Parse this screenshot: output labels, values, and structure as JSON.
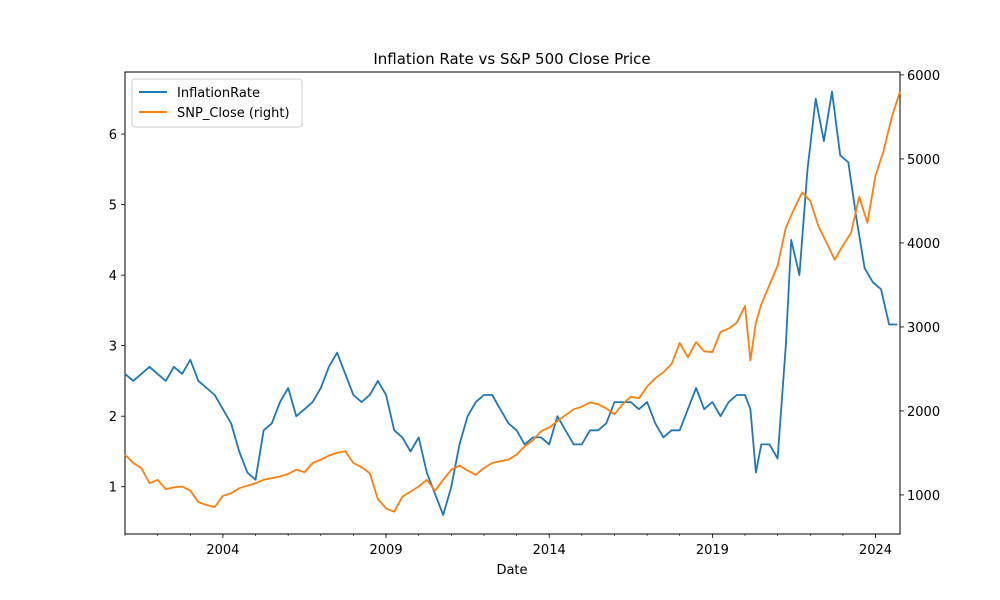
{
  "chart_data": {
    "type": "line",
    "title": "Inflation Rate vs S&P 500 Close Price",
    "xlabel": "Date",
    "ylabel_left": "",
    "ylabel_right": "",
    "xlim": [
      "2001-01-01",
      "2024-10-01"
    ],
    "ylim_left": [
      0.33,
      6.88
    ],
    "ylim_right": [
      535,
      6035
    ],
    "x_ticks": [
      {
        "label": "2004",
        "date": "2004-01-01"
      },
      {
        "label": "2009",
        "date": "2009-01-01"
      },
      {
        "label": "2014",
        "date": "2014-01-01"
      },
      {
        "label": "2019",
        "date": "2019-01-01"
      },
      {
        "label": "2024",
        "date": "2024-01-01"
      }
    ],
    "y_ticks_left": [
      {
        "label": "1",
        "value": 1
      },
      {
        "label": "2",
        "value": 2
      },
      {
        "label": "3",
        "value": 3
      },
      {
        "label": "4",
        "value": 4
      },
      {
        "label": "5",
        "value": 5
      },
      {
        "label": "6",
        "value": 6
      }
    ],
    "y_ticks_right": [
      {
        "label": "1000",
        "value": 1000
      },
      {
        "label": "2000",
        "value": 2000
      },
      {
        "label": "3000",
        "value": 3000
      },
      {
        "label": "4000",
        "value": 4000
      },
      {
        "label": "5000",
        "value": 5000
      },
      {
        "label": "6000",
        "value": 6000
      }
    ],
    "grid": false,
    "legend_position": "top-left",
    "series": [
      {
        "name": "InflationRate",
        "axis": "left",
        "color": "#1f77b4",
        "points": [
          [
            "2001-01-01",
            2.6
          ],
          [
            "2001-04-01",
            2.5
          ],
          [
            "2001-07-01",
            2.6
          ],
          [
            "2001-10-01",
            2.7
          ],
          [
            "2002-01-01",
            2.6
          ],
          [
            "2002-04-01",
            2.5
          ],
          [
            "2002-07-01",
            2.7
          ],
          [
            "2002-10-01",
            2.6
          ],
          [
            "2003-01-01",
            2.8
          ],
          [
            "2003-04-01",
            2.5
          ],
          [
            "2003-07-01",
            2.4
          ],
          [
            "2003-10-01",
            2.3
          ],
          [
            "2004-01-01",
            2.1
          ],
          [
            "2004-04-01",
            1.9
          ],
          [
            "2004-07-01",
            1.5
          ],
          [
            "2004-10-01",
            1.2
          ],
          [
            "2005-01-01",
            1.1
          ],
          [
            "2005-04-01",
            1.8
          ],
          [
            "2005-07-01",
            1.9
          ],
          [
            "2005-10-01",
            2.2
          ],
          [
            "2006-01-01",
            2.4
          ],
          [
            "2006-04-01",
            2.0
          ],
          [
            "2006-07-01",
            2.1
          ],
          [
            "2006-10-01",
            2.2
          ],
          [
            "2007-01-01",
            2.4
          ],
          [
            "2007-04-01",
            2.7
          ],
          [
            "2007-07-01",
            2.9
          ],
          [
            "2007-10-01",
            2.6
          ],
          [
            "2008-01-01",
            2.3
          ],
          [
            "2008-04-01",
            2.2
          ],
          [
            "2008-07-01",
            2.3
          ],
          [
            "2008-10-01",
            2.5
          ],
          [
            "2009-01-01",
            2.3
          ],
          [
            "2009-04-01",
            1.8
          ],
          [
            "2009-07-01",
            1.7
          ],
          [
            "2009-10-01",
            1.5
          ],
          [
            "2010-01-01",
            1.7
          ],
          [
            "2010-04-01",
            1.2
          ],
          [
            "2010-07-01",
            0.9
          ],
          [
            "2010-10-01",
            0.6
          ],
          [
            "2011-01-01",
            1.0
          ],
          [
            "2011-04-01",
            1.6
          ],
          [
            "2011-07-01",
            2.0
          ],
          [
            "2011-10-01",
            2.2
          ],
          [
            "2012-01-01",
            2.3
          ],
          [
            "2012-04-01",
            2.3
          ],
          [
            "2012-07-01",
            2.1
          ],
          [
            "2012-10-01",
            1.9
          ],
          [
            "2013-01-01",
            1.8
          ],
          [
            "2013-04-01",
            1.6
          ],
          [
            "2013-07-01",
            1.7
          ],
          [
            "2013-10-01",
            1.7
          ],
          [
            "2014-01-01",
            1.6
          ],
          [
            "2014-04-01",
            2.0
          ],
          [
            "2014-07-01",
            1.8
          ],
          [
            "2014-10-01",
            1.6
          ],
          [
            "2015-01-01",
            1.6
          ],
          [
            "2015-04-01",
            1.8
          ],
          [
            "2015-07-01",
            1.8
          ],
          [
            "2015-10-01",
            1.9
          ],
          [
            "2016-01-01",
            2.2
          ],
          [
            "2016-04-01",
            2.2
          ],
          [
            "2016-07-01",
            2.2
          ],
          [
            "2016-10-01",
            2.1
          ],
          [
            "2017-01-01",
            2.2
          ],
          [
            "2017-04-01",
            1.9
          ],
          [
            "2017-07-01",
            1.7
          ],
          [
            "2017-10-01",
            1.8
          ],
          [
            "2018-01-01",
            1.8
          ],
          [
            "2018-04-01",
            2.1
          ],
          [
            "2018-07-01",
            2.4
          ],
          [
            "2018-10-01",
            2.1
          ],
          [
            "2019-01-01",
            2.2
          ],
          [
            "2019-04-01",
            2.0
          ],
          [
            "2019-07-01",
            2.2
          ],
          [
            "2019-10-01",
            2.3
          ],
          [
            "2020-01-01",
            2.3
          ],
          [
            "2020-03-01",
            2.1
          ],
          [
            "2020-05-01",
            1.2
          ],
          [
            "2020-07-01",
            1.6
          ],
          [
            "2020-10-01",
            1.6
          ],
          [
            "2021-01-01",
            1.4
          ],
          [
            "2021-04-01",
            3.0
          ],
          [
            "2021-06-01",
            4.5
          ],
          [
            "2021-09-01",
            4.0
          ],
          [
            "2021-12-01",
            5.5
          ],
          [
            "2022-03-01",
            6.5
          ],
          [
            "2022-06-01",
            5.9
          ],
          [
            "2022-09-01",
            6.6
          ],
          [
            "2022-12-01",
            5.7
          ],
          [
            "2023-03-01",
            5.6
          ],
          [
            "2023-06-01",
            4.8
          ],
          [
            "2023-09-01",
            4.1
          ],
          [
            "2023-12-01",
            3.9
          ],
          [
            "2024-03-01",
            3.8
          ],
          [
            "2024-06-01",
            3.3
          ],
          [
            "2024-09-01",
            3.3
          ]
        ]
      },
      {
        "name": "SNP_Close (right)",
        "axis": "right",
        "color": "#ff7f0e",
        "points": [
          [
            "2001-01-01",
            1480
          ],
          [
            "2001-04-01",
            1380
          ],
          [
            "2001-07-01",
            1320
          ],
          [
            "2001-10-01",
            1140
          ],
          [
            "2002-01-01",
            1180
          ],
          [
            "2002-04-01",
            1070
          ],
          [
            "2002-07-01",
            1090
          ],
          [
            "2002-10-01",
            1100
          ],
          [
            "2003-01-01",
            1050
          ],
          [
            "2003-04-01",
            915
          ],
          [
            "2003-07-01",
            880
          ],
          [
            "2003-10-01",
            855
          ],
          [
            "2004-01-01",
            990
          ],
          [
            "2004-04-01",
            1020
          ],
          [
            "2004-07-01",
            1080
          ],
          [
            "2004-10-01",
            1110
          ],
          [
            "2005-01-01",
            1140
          ],
          [
            "2005-04-01",
            1180
          ],
          [
            "2005-07-01",
            1200
          ],
          [
            "2005-10-01",
            1220
          ],
          [
            "2006-01-01",
            1250
          ],
          [
            "2006-04-01",
            1300
          ],
          [
            "2006-07-01",
            1270
          ],
          [
            "2006-10-01",
            1380
          ],
          [
            "2007-01-01",
            1420
          ],
          [
            "2007-04-01",
            1470
          ],
          [
            "2007-07-01",
            1500
          ],
          [
            "2007-10-01",
            1520
          ],
          [
            "2008-01-01",
            1380
          ],
          [
            "2008-04-01",
            1330
          ],
          [
            "2008-07-01",
            1260
          ],
          [
            "2008-10-01",
            950
          ],
          [
            "2009-01-01",
            840
          ],
          [
            "2009-04-01",
            800
          ],
          [
            "2009-07-01",
            980
          ],
          [
            "2009-10-01",
            1040
          ],
          [
            "2010-01-01",
            1100
          ],
          [
            "2010-04-01",
            1180
          ],
          [
            "2010-07-01",
            1050
          ],
          [
            "2010-10-01",
            1180
          ],
          [
            "2011-01-01",
            1300
          ],
          [
            "2011-04-01",
            1350
          ],
          [
            "2011-07-01",
            1290
          ],
          [
            "2011-10-01",
            1240
          ],
          [
            "2012-01-01",
            1320
          ],
          [
            "2012-04-01",
            1380
          ],
          [
            "2012-07-01",
            1400
          ],
          [
            "2012-10-01",
            1420
          ],
          [
            "2013-01-01",
            1480
          ],
          [
            "2013-04-01",
            1580
          ],
          [
            "2013-07-01",
            1650
          ],
          [
            "2013-10-01",
            1760
          ],
          [
            "2014-01-01",
            1800
          ],
          [
            "2014-04-01",
            1880
          ],
          [
            "2014-07-01",
            1950
          ],
          [
            "2014-10-01",
            2020
          ],
          [
            "2015-01-01",
            2050
          ],
          [
            "2015-04-01",
            2100
          ],
          [
            "2015-07-01",
            2080
          ],
          [
            "2015-10-01",
            2030
          ],
          [
            "2016-01-01",
            1960
          ],
          [
            "2016-04-01",
            2080
          ],
          [
            "2016-07-01",
            2170
          ],
          [
            "2016-10-01",
            2150
          ],
          [
            "2017-01-01",
            2290
          ],
          [
            "2017-04-01",
            2390
          ],
          [
            "2017-07-01",
            2460
          ],
          [
            "2017-10-01",
            2560
          ],
          [
            "2018-01-01",
            2810
          ],
          [
            "2018-04-01",
            2640
          ],
          [
            "2018-07-01",
            2820
          ],
          [
            "2018-10-01",
            2710
          ],
          [
            "2019-01-01",
            2700
          ],
          [
            "2019-04-01",
            2940
          ],
          [
            "2019-07-01",
            2980
          ],
          [
            "2019-10-01",
            3050
          ],
          [
            "2020-01-01",
            3250
          ],
          [
            "2020-03-01",
            2600
          ],
          [
            "2020-05-01",
            3050
          ],
          [
            "2020-07-01",
            3270
          ],
          [
            "2020-10-01",
            3500
          ],
          [
            "2021-01-01",
            3730
          ],
          [
            "2021-04-01",
            4180
          ],
          [
            "2021-07-01",
            4400
          ],
          [
            "2021-10-01",
            4600
          ],
          [
            "2022-01-01",
            4500
          ],
          [
            "2022-04-01",
            4200
          ],
          [
            "2022-07-01",
            4000
          ],
          [
            "2022-10-01",
            3800
          ],
          [
            "2023-01-01",
            3970
          ],
          [
            "2023-04-01",
            4120
          ],
          [
            "2023-07-01",
            4550
          ],
          [
            "2023-10-01",
            4240
          ],
          [
            "2024-01-01",
            4800
          ],
          [
            "2024-04-01",
            5100
          ],
          [
            "2024-07-01",
            5500
          ],
          [
            "2024-10-01",
            5800
          ]
        ]
      }
    ]
  }
}
